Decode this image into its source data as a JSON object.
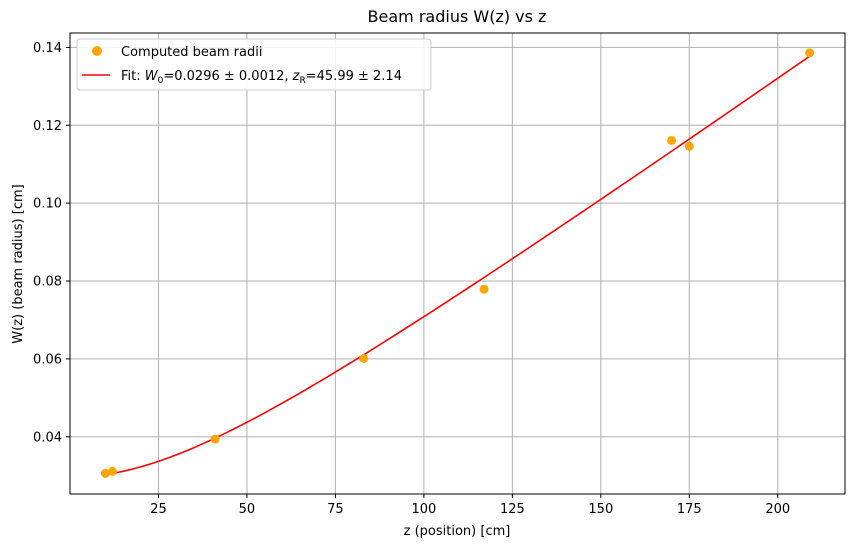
{
  "chart_data": {
    "type": "scatter",
    "title": "Beam radius W(z) vs z",
    "xlabel": "z (position) [cm]",
    "ylabel": "W(z) (beam radius) [cm]",
    "xlim": [
      0,
      219
    ],
    "ylim": [
      0.0253,
      0.1437
    ],
    "xticks": [
      25,
      50,
      75,
      100,
      125,
      150,
      175,
      200
    ],
    "yticks": [
      0.04,
      0.06,
      0.08,
      0.1,
      0.12,
      0.14
    ],
    "xtick_labels": [
      "25",
      "50",
      "75",
      "100",
      "125",
      "150",
      "175",
      "200"
    ],
    "ytick_labels": [
      "0.04",
      "0.06",
      "0.08",
      "0.10",
      "0.12",
      "0.14"
    ],
    "grid": true,
    "legend_position": "top-left",
    "series": [
      {
        "name": "Computed beam radii",
        "kind": "scatter",
        "color": "#FFA500",
        "x": [
          10,
          12,
          41,
          83,
          117,
          170,
          175,
          209
        ],
        "y": [
          0.0306,
          0.0311,
          0.0394,
          0.0601,
          0.0779,
          0.1161,
          0.1146,
          0.1386
        ]
      },
      {
        "name": "Fit",
        "kind": "line",
        "color": "#FF0000",
        "W0": 0.0296,
        "zR": 45.99,
        "x_range": [
          10,
          209
        ]
      }
    ],
    "legend": {
      "scatter_label": "Computed beam radii",
      "fit_label_prefix": "Fit: ",
      "fit_w_sym": "W",
      "fit_w_sub": "0",
      "fit_w_value": "=0.0296 ± 0.0012, ",
      "fit_z_sym": "z",
      "fit_z_sub": "R",
      "fit_z_value": "=45.99 ± 2.14"
    }
  }
}
